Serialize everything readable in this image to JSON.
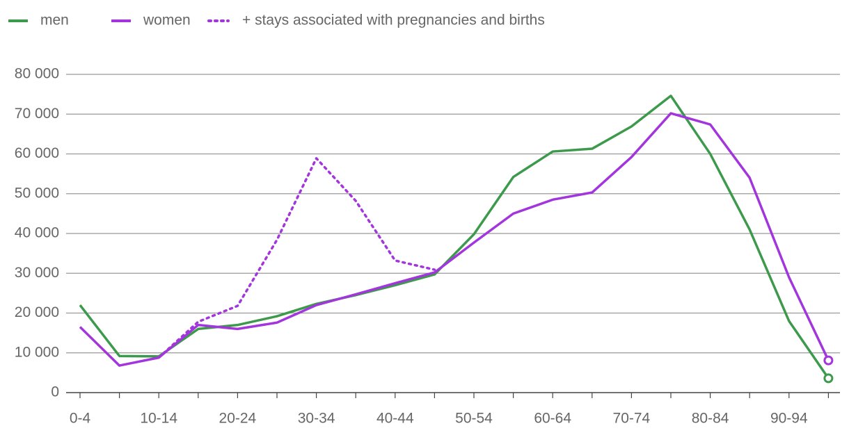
{
  "chart_data": {
    "type": "line",
    "categories": [
      "0-4",
      null,
      "10-14",
      null,
      "20-24",
      null,
      "30-34",
      null,
      "40-44",
      null,
      "50-54",
      null,
      "60-64",
      null,
      "70-74",
      null,
      "80-84",
      null,
      "90-94",
      null
    ],
    "series": [
      {
        "name": "men",
        "color": "#3d9a4c",
        "dashed": false,
        "end_marker": true,
        "values": [
          22000,
          9200,
          9100,
          16000,
          17000,
          19200,
          22300,
          24500,
          27000,
          29700,
          39800,
          54200,
          60600,
          61300,
          66900,
          74600,
          60000,
          41000,
          18000,
          3600
        ]
      },
      {
        "name": "women",
        "color": "#a335dc",
        "dashed": false,
        "end_marker": true,
        "values": [
          16500,
          6800,
          8800,
          17000,
          16000,
          17600,
          22000,
          24700,
          27500,
          30200,
          37700,
          45000,
          48500,
          50300,
          59200,
          70200,
          67400,
          54000,
          29000,
          8100
        ]
      },
      {
        "name": "+ stays associated with pregnancies and births",
        "color": "#a335dc",
        "dashed": true,
        "end_marker": false,
        "values": [
          null,
          null,
          8800,
          17800,
          21800,
          38400,
          58900,
          48200,
          33200,
          30900,
          null,
          null,
          null,
          null,
          null,
          null,
          null,
          null,
          null,
          null
        ]
      }
    ],
    "ylim": [
      0,
      80000
    ],
    "yticks": [
      0,
      {
        "value": 10000,
        "label": "10 000"
      },
      {
        "value": 20000,
        "label": "20 000"
      },
      {
        "value": 30000,
        "label": "30 000"
      },
      {
        "value": 40000,
        "label": "40 000"
      },
      {
        "value": 50000,
        "label": "50 000"
      },
      {
        "value": 60000,
        "label": "60 000"
      },
      {
        "value": 70000,
        "label": "70 000"
      },
      {
        "value": 80000,
        "label": "80 000"
      }
    ],
    "grid": true,
    "legend": "top-left"
  }
}
